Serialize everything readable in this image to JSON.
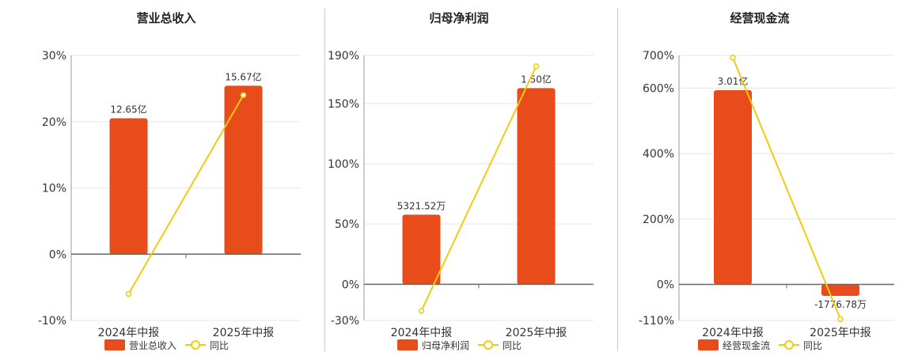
{
  "chart_data": [
    {
      "type": "bar",
      "title": "营业总收入",
      "categories": [
        "2024年中报",
        "2025年中报"
      ],
      "series": [
        {
          "name": "营业总收入",
          "type": "bar",
          "values": [
            12.65,
            15.67
          ],
          "labels": [
            "12.65亿",
            "15.67亿"
          ],
          "color": "#e84c1a"
        },
        {
          "name": "同比",
          "type": "line",
          "values": [
            -6.0,
            24.0
          ],
          "color": "#f0cc10"
        }
      ],
      "y_axis": {
        "ticks": [
          -10,
          0,
          10,
          20,
          30
        ],
        "tick_labels": [
          "-10%",
          "0%",
          "10%",
          "20%",
          "30%"
        ],
        "ylim": [
          -10,
          30
        ],
        "bar_axis_max": 18.5
      },
      "grid": true,
      "legend": {
        "position": "bottom",
        "items": [
          "营业总收入",
          "同比"
        ]
      }
    },
    {
      "type": "bar",
      "title": "归母净利润",
      "categories": [
        "2024年中报",
        "2025年中报"
      ],
      "series": [
        {
          "name": "归母净利润",
          "type": "bar",
          "values": [
            0.5321,
            1.5
          ],
          "labels": [
            "5321.52万",
            "1.50亿"
          ],
          "color": "#e84c1a"
        },
        {
          "name": "同比",
          "type": "line",
          "values": [
            -22,
            181
          ],
          "color": "#f0cc10"
        }
      ],
      "y_axis": {
        "ticks": [
          -30,
          0,
          50,
          100,
          150,
          190
        ],
        "tick_labels": [
          "-30%",
          "0%",
          "50%",
          "100%",
          "150%",
          "190%"
        ],
        "ylim": [
          -30,
          190
        ],
        "bar_axis_max": 1.75
      },
      "grid": true,
      "legend": {
        "position": "bottom",
        "items": [
          "归母净利润",
          "同比"
        ]
      }
    },
    {
      "type": "bar",
      "title": "经营现金流",
      "categories": [
        "2024年中报",
        "2025年中报"
      ],
      "series": [
        {
          "name": "经营现金流",
          "type": "bar",
          "values": [
            3.01,
            -0.1776
          ],
          "labels": [
            "3.01亿",
            "-1776.78万"
          ],
          "color": "#e84c1a"
        },
        {
          "name": "同比",
          "type": "line",
          "values": [
            693,
            -106
          ],
          "color": "#f0cc10"
        }
      ],
      "y_axis": {
        "ticks": [
          -110,
          0,
          200,
          400,
          600,
          700
        ],
        "tick_labels": [
          "-110%",
          "0%",
          "200%",
          "400%",
          "600%",
          "700%"
        ],
        "ylim": [
          -110,
          700
        ],
        "bar_axis_max": 3.55
      },
      "grid": true,
      "legend": {
        "position": "bottom",
        "items": [
          "经营现金流",
          "同比"
        ]
      }
    }
  ]
}
